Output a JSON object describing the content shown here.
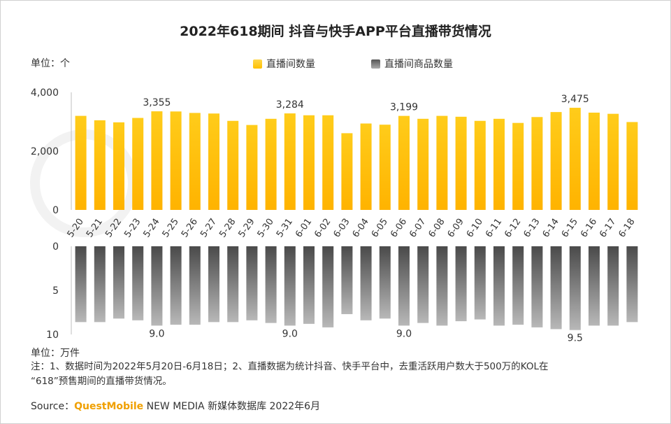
{
  "title": "2022年618期间 抖音与快手APP平台直播带货情况",
  "unit_top": "单位：个",
  "unit_bottom": "单位：万件",
  "legend": [
    {
      "label": "直播间数量",
      "color": "#FFC000"
    },
    {
      "label": "直播间商品数量",
      "color": "#7F7F7F"
    }
  ],
  "note_line1": "注：1、数据时间为2022年5月20日-6月18日；2、直播数据为统计抖音、快手平台中，去重活跃用户数大于500万的KOL在",
  "note_line2": "“618”预售期间的直播带货情况。",
  "source_prefix": "Source：",
  "source_brand": "QuestMobile",
  "source_rest": " NEW MEDIA 新媒体数据库 2022年6月",
  "chart_data": {
    "type": "bar",
    "title": "2022年618期间 抖音与快手APP平台直播带货情况",
    "categories": [
      "5-20",
      "5-21",
      "5-22",
      "5-23",
      "5-24",
      "5-25",
      "5-26",
      "5-27",
      "5-28",
      "5-29",
      "5-30",
      "5-31",
      "6-01",
      "6-02",
      "6-03",
      "6-04",
      "6-05",
      "6-06",
      "6-07",
      "6-08",
      "6-09",
      "6-10",
      "6-11",
      "6-12",
      "6-13",
      "6-14",
      "6-15",
      "6-16",
      "6-17",
      "6-18"
    ],
    "series": [
      {
        "name": "直播间数量",
        "unit": "个",
        "color": "#FFC000",
        "values": [
          3200,
          3050,
          2980,
          3130,
          3355,
          3350,
          3300,
          3280,
          3030,
          2890,
          3100,
          3284,
          3220,
          3220,
          2610,
          2940,
          2900,
          3199,
          3100,
          3200,
          3170,
          3030,
          3100,
          2960,
          3160,
          3330,
          3475,
          3310,
          3270,
          2990
        ],
        "ylim": [
          0,
          4000
        ],
        "ticks": [
          "0",
          "2,000",
          "4,000"
        ],
        "tick_values": [
          0,
          2000,
          4000
        ],
        "labels": [
          {
            "category": "5-24",
            "text": "3,355"
          },
          {
            "category": "5-31",
            "text": "3,284"
          },
          {
            "category": "6-06",
            "text": "3,199"
          },
          {
            "category": "6-15",
            "text": "3,475"
          }
        ]
      },
      {
        "name": "直播间商品数量",
        "unit": "万件",
        "color": "#7F7F7F",
        "values": [
          8.6,
          8.6,
          8.2,
          8.4,
          9.0,
          8.9,
          8.9,
          8.6,
          8.6,
          8.4,
          8.7,
          9.0,
          8.8,
          9.2,
          7.7,
          8.4,
          8.2,
          9.0,
          8.7,
          9.0,
          8.5,
          8.3,
          9.0,
          8.9,
          9.2,
          9.4,
          9.5,
          9.0,
          9.0,
          8.6
        ],
        "ylim": [
          0,
          10
        ],
        "ticks": [
          "0",
          "5",
          "10"
        ],
        "tick_values": [
          0,
          5,
          10
        ],
        "direction": "downward",
        "labels": [
          {
            "category": "5-24",
            "text": "9.0"
          },
          {
            "category": "5-31",
            "text": "9.0"
          },
          {
            "category": "6-06",
            "text": "9.0"
          },
          {
            "category": "6-15",
            "text": "9.5"
          }
        ]
      }
    ],
    "xlabel": "",
    "ylabel": "单位：个 / 单位：万件"
  }
}
